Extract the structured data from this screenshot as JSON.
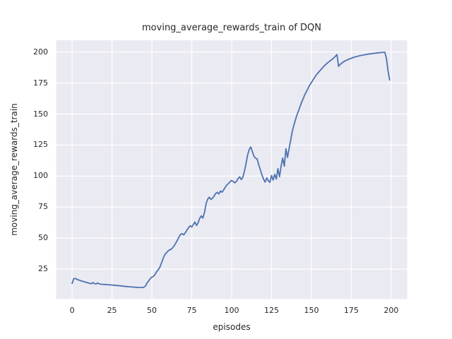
{
  "chart": {
    "title": "moving_average_rewards_train of DQN",
    "xlabel": "episodes",
    "ylabel": "moving_average_rewards_train"
  },
  "colors": {
    "figure_background": "#ffffff",
    "plot_background": "#eaeaf2",
    "grid": "#ffffff",
    "line": "#4c72b0",
    "text": "#262626"
  },
  "chart_data": {
    "type": "line",
    "title": "moving_average_rewards_train of DQN",
    "xlabel": "episodes",
    "ylabel": "moving_average_rewards_train",
    "legend": false,
    "grid": true,
    "x_ticks": [
      0,
      25,
      50,
      75,
      100,
      125,
      150,
      175,
      200
    ],
    "y_ticks": [
      25,
      50,
      75,
      100,
      125,
      150,
      175,
      200
    ],
    "xlim": [
      -10,
      210
    ],
    "ylim": [
      1,
      209.5
    ],
    "series": [
      {
        "name": "moving_average_rewards_train",
        "color": "#4c72b0",
        "points": [
          [
            0,
            13.5
          ],
          [
            1,
            17.2
          ],
          [
            2,
            17.5
          ],
          [
            3,
            16.9
          ],
          [
            4,
            16.3
          ],
          [
            5,
            15.9
          ],
          [
            6,
            15.4
          ],
          [
            7,
            15.1
          ],
          [
            8,
            14.7
          ],
          [
            9,
            14.3
          ],
          [
            10,
            14.0
          ],
          [
            11,
            13.6
          ],
          [
            12,
            13.3
          ],
          [
            13,
            14.2
          ],
          [
            14,
            13.4
          ],
          [
            15,
            13.0
          ],
          [
            16,
            13.9
          ],
          [
            17,
            13.2
          ],
          [
            18,
            12.9
          ],
          [
            19,
            12.8
          ],
          [
            20,
            12.7
          ],
          [
            22,
            12.5
          ],
          [
            24,
            12.3
          ],
          [
            26,
            12.1
          ],
          [
            28,
            11.9
          ],
          [
            30,
            11.6
          ],
          [
            32,
            11.3
          ],
          [
            34,
            11.0
          ],
          [
            36,
            10.8
          ],
          [
            38,
            10.6
          ],
          [
            40,
            10.4
          ],
          [
            42,
            10.3
          ],
          [
            44,
            10.2
          ],
          [
            45,
            10.5
          ],
          [
            46,
            11.5
          ],
          [
            47,
            14.0
          ],
          [
            48,
            15.6
          ],
          [
            49,
            17.4
          ],
          [
            50,
            18.6
          ],
          [
            51,
            19.2
          ],
          [
            52,
            20.8
          ],
          [
            53,
            23.0
          ],
          [
            54,
            24.5
          ],
          [
            55,
            26.5
          ],
          [
            56,
            30.0
          ],
          [
            57,
            33.5
          ],
          [
            58,
            36.5
          ],
          [
            59,
            38.0
          ],
          [
            60,
            39.5
          ],
          [
            61,
            40.5
          ],
          [
            62,
            41.0
          ],
          [
            63,
            42.2
          ],
          [
            64,
            44.0
          ],
          [
            65,
            46.0
          ],
          [
            66,
            48.5
          ],
          [
            67,
            51.0
          ],
          [
            68,
            53.0
          ],
          [
            69,
            53.6
          ],
          [
            70,
            52.6
          ],
          [
            71,
            54.5
          ],
          [
            72,
            56.5
          ],
          [
            73,
            58.5
          ],
          [
            74,
            60.0
          ],
          [
            75,
            59.0
          ],
          [
            76,
            61.0
          ],
          [
            77,
            63.0
          ],
          [
            78,
            60.2
          ],
          [
            79,
            62.5
          ],
          [
            80,
            66.0
          ],
          [
            81,
            68.0
          ],
          [
            82,
            66.2
          ],
          [
            83,
            71.0
          ],
          [
            84,
            78.0
          ],
          [
            85,
            81.5
          ],
          [
            86,
            83.0
          ],
          [
            87,
            81.2
          ],
          [
            88,
            82.2
          ],
          [
            89,
            84.0
          ],
          [
            90,
            86.0
          ],
          [
            91,
            87.0
          ],
          [
            92,
            85.6
          ],
          [
            93,
            88.0
          ],
          [
            94,
            87.0
          ],
          [
            95,
            89.0
          ],
          [
            96,
            91.0
          ],
          [
            97,
            93.0
          ],
          [
            98,
            94.0
          ],
          [
            99,
            95.5
          ],
          [
            100,
            96.5
          ],
          [
            101,
            95.6
          ],
          [
            102,
            94.6
          ],
          [
            103,
            95.8
          ],
          [
            104,
            98.0
          ],
          [
            105,
            99.5
          ],
          [
            106,
            97.2
          ],
          [
            107,
            99.0
          ],
          [
            108,
            104.0
          ],
          [
            109,
            110.0
          ],
          [
            110,
            117.0
          ],
          [
            111,
            121.5
          ],
          [
            112,
            123.5
          ],
          [
            113,
            119.5
          ],
          [
            114,
            116.0
          ],
          [
            115,
            114.5
          ],
          [
            116,
            113.8
          ],
          [
            117,
            109.0
          ],
          [
            118,
            105.0
          ],
          [
            119,
            101.0
          ],
          [
            120,
            97.5
          ],
          [
            121,
            95.2
          ],
          [
            122,
            98.5
          ],
          [
            123,
            96.2
          ],
          [
            124,
            95.0
          ],
          [
            125,
            100.5
          ],
          [
            126,
            96.8
          ],
          [
            127,
            101.5
          ],
          [
            128,
            97.6
          ],
          [
            129,
            106.0
          ],
          [
            130,
            99.5
          ],
          [
            131,
            108.0
          ],
          [
            132,
            114.5
          ],
          [
            133,
            108.0
          ],
          [
            134,
            122.0
          ],
          [
            135,
            115.0
          ],
          [
            136,
            122.0
          ],
          [
            137,
            129.0
          ],
          [
            138,
            136.0
          ],
          [
            139,
            141.0
          ],
          [
            140,
            145.5
          ],
          [
            141,
            149.5
          ],
          [
            142,
            153.0
          ],
          [
            143,
            156.5
          ],
          [
            144,
            160.0
          ],
          [
            145,
            163.0
          ],
          [
            146,
            166.0
          ],
          [
            147,
            168.5
          ],
          [
            148,
            171.0
          ],
          [
            149,
            173.5
          ],
          [
            150,
            175.5
          ],
          [
            151,
            177.5
          ],
          [
            152,
            179.5
          ],
          [
            153,
            181.5
          ],
          [
            154,
            183.0
          ],
          [
            155,
            184.5
          ],
          [
            156,
            186.0
          ],
          [
            157,
            187.5
          ],
          [
            158,
            188.8
          ],
          [
            159,
            190.0
          ],
          [
            160,
            191.2
          ],
          [
            161,
            192.2
          ],
          [
            162,
            193.2
          ],
          [
            163,
            194.2
          ],
          [
            164,
            195.2
          ],
          [
            165,
            196.5
          ],
          [
            166,
            198.0
          ],
          [
            167,
            188.5
          ],
          [
            168,
            190.0
          ],
          [
            169,
            191.0
          ],
          [
            170,
            192.0
          ],
          [
            171,
            192.8
          ],
          [
            172,
            193.4
          ],
          [
            173,
            194.0
          ],
          [
            174,
            194.5
          ],
          [
            175,
            195.0
          ],
          [
            176,
            195.5
          ],
          [
            177,
            195.9
          ],
          [
            178,
            196.3
          ],
          [
            179,
            196.6
          ],
          [
            180,
            197.0
          ],
          [
            182,
            197.5
          ],
          [
            184,
            198.0
          ],
          [
            186,
            198.4
          ],
          [
            188,
            198.8
          ],
          [
            190,
            199.1
          ],
          [
            192,
            199.4
          ],
          [
            194,
            199.6
          ],
          [
            196,
            199.8
          ],
          [
            197,
            195.0
          ],
          [
            198,
            185.0
          ],
          [
            199,
            177.5
          ]
        ]
      }
    ]
  }
}
